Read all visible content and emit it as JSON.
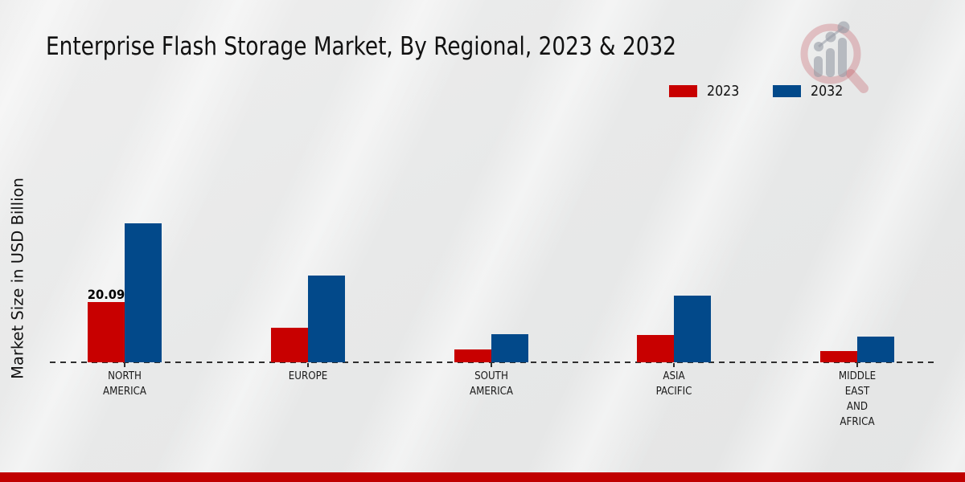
{
  "title": "Enterprise Flash Storage Market, By Regional, 2023 & 2032",
  "brand": {
    "logo_icon": "magnifier-bar-chart-logo"
  },
  "footer": {
    "accent_color": "#c00000"
  },
  "chart_data": {
    "type": "bar",
    "title": "Enterprise Flash Storage Market, By Regional, 2023 & 2032",
    "xlabel": "",
    "ylabel": "Market Size in USD Billion",
    "unit": "USD Billion",
    "legend_position": "top-right",
    "gridlines": false,
    "y_axis_visible": false,
    "baseline_style": "dashed",
    "categories": [
      "NORTH AMERICA",
      "EUROPE",
      "SOUTH AMERICA",
      "ASIA PACIFIC",
      "MIDDLE EAST AND AFRICA"
    ],
    "category_label_lines": [
      [
        "NORTH",
        "AMERICA"
      ],
      [
        "EUROPE"
      ],
      [
        "SOUTH",
        "AMERICA"
      ],
      [
        "ASIA",
        "PACIFIC"
      ],
      [
        "MIDDLE",
        "EAST",
        "AND",
        "AFRICA"
      ]
    ],
    "series": [
      {
        "name": "2023",
        "color": "#c80000",
        "values": [
          20.09,
          11.7,
          4.2,
          9.1,
          3.8
        ]
      },
      {
        "name": "2032",
        "color": "#02498a",
        "values": [
          46.6,
          29.0,
          9.4,
          22.3,
          8.7
        ]
      }
    ],
    "annotations": [
      {
        "series_index": 0,
        "category_index": 0,
        "text": "20.09"
      }
    ],
    "ylim": [
      0,
      50
    ]
  }
}
